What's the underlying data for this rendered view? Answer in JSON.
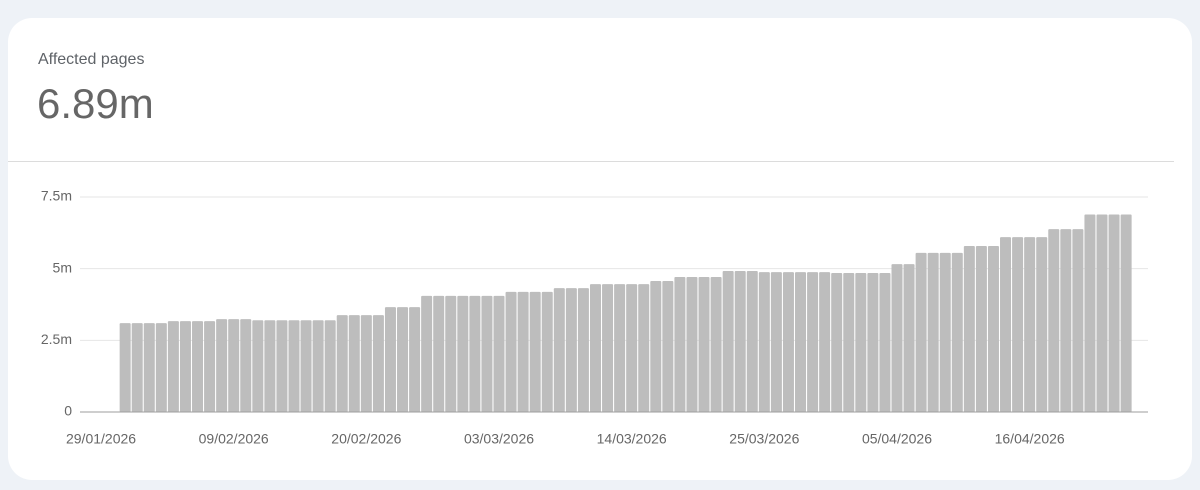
{
  "header": {
    "title": "Affected pages",
    "value": "6.89m"
  },
  "chart_data": {
    "type": "bar",
    "categories": [
      "29/01/2026",
      null,
      null,
      null,
      null,
      null,
      null,
      null,
      null,
      null,
      null,
      "09/02/2026",
      null,
      null,
      null,
      null,
      null,
      null,
      null,
      null,
      null,
      null,
      "20/02/2026",
      null,
      null,
      null,
      null,
      null,
      null,
      null,
      null,
      null,
      null,
      "03/03/2026",
      null,
      null,
      null,
      null,
      null,
      null,
      null,
      null,
      null,
      null,
      "14/03/2026",
      null,
      null,
      null,
      null,
      null,
      null,
      null,
      null,
      null,
      null,
      "25/03/2026",
      null,
      null,
      null,
      null,
      null,
      null,
      null,
      null,
      null,
      null,
      "05/04/2026",
      null,
      null,
      null,
      null,
      null,
      null,
      null,
      null,
      null,
      null,
      "16/04/2026",
      null,
      null,
      null,
      null,
      null,
      null,
      null,
      null,
      null,
      null
    ],
    "values": [
      null,
      null,
      3100000,
      3100000,
      3100000,
      3100000,
      3170000,
      3170000,
      3170000,
      3170000,
      3240000,
      3240000,
      3240000,
      3200000,
      3200000,
      3200000,
      3200000,
      3200000,
      3200000,
      3200000,
      3380000,
      3380000,
      3380000,
      3380000,
      3660000,
      3660000,
      3660000,
      4050000,
      4050000,
      4050000,
      4050000,
      4050000,
      4050000,
      4050000,
      4190000,
      4190000,
      4190000,
      4190000,
      4320000,
      4320000,
      4320000,
      4460000,
      4460000,
      4460000,
      4460000,
      4460000,
      4570000,
      4570000,
      4710000,
      4710000,
      4710000,
      4710000,
      4920000,
      4920000,
      4920000,
      4880000,
      4880000,
      4880000,
      4880000,
      4880000,
      4880000,
      4850000,
      4850000,
      4850000,
      4850000,
      4850000,
      5160000,
      5160000,
      5550000,
      5550000,
      5550000,
      5550000,
      5790000,
      5790000,
      5790000,
      6100000,
      6100000,
      6100000,
      6100000,
      6380000,
      6380000,
      6380000,
      6890000,
      6890000,
      6890000,
      6890000,
      null,
      null
    ],
    "color": "#bdbdbd",
    "ylim": [
      0,
      7500000
    ],
    "yticks": [
      0,
      {
        "value": 2500000,
        "label": "2.5m"
      },
      {
        "value": 5000000,
        "label": "5m"
      },
      {
        "value": 7500000,
        "label": "7.5m"
      }
    ],
    "grid": true
  }
}
